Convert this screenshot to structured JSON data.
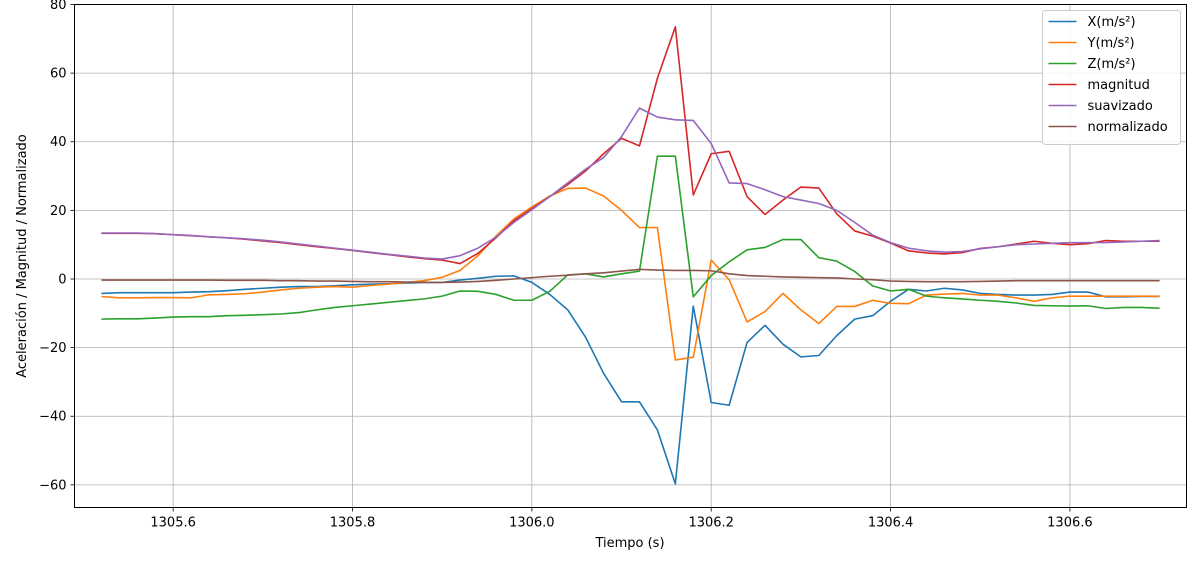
{
  "chart_data": {
    "type": "line",
    "xlabel": "Tiempo (s)",
    "ylabel": "Aceleración / Magnitud / Normalizado",
    "xlim": [
      1305.49,
      1306.73
    ],
    "ylim": [
      -66.6,
      80
    ],
    "xticks": [
      1305.6,
      1305.8,
      1306.0,
      1306.2,
      1306.4,
      1306.6
    ],
    "xtick_labels": [
      "1305.6",
      "1305.8",
      "1306.0",
      "1306.2",
      "1306.4",
      "1306.6"
    ],
    "yticks": [
      -60,
      -40,
      -20,
      0,
      20,
      40,
      60,
      80
    ],
    "ytick_labels": [
      "−60",
      "−40",
      "−20",
      "0",
      "20",
      "40",
      "60",
      "80"
    ],
    "grid": true,
    "legend_position": "top-right",
    "x": [
      1305.52,
      1305.54,
      1305.56,
      1305.58,
      1305.6,
      1305.62,
      1305.64,
      1305.66,
      1305.68,
      1305.7,
      1305.72,
      1305.74,
      1305.76,
      1305.78,
      1305.8,
      1305.82,
      1305.84,
      1305.86,
      1305.88,
      1305.9,
      1305.92,
      1305.94,
      1305.96,
      1305.98,
      1306.0,
      1306.02,
      1306.04,
      1306.06,
      1306.08,
      1306.1,
      1306.12,
      1306.14,
      1306.16,
      1306.18,
      1306.2,
      1306.22,
      1306.24,
      1306.26,
      1306.28,
      1306.3,
      1306.32,
      1306.34,
      1306.36,
      1306.38,
      1306.4,
      1306.42,
      1306.44,
      1306.46,
      1306.48,
      1306.5,
      1306.52,
      1306.54,
      1306.56,
      1306.58,
      1306.6,
      1306.62,
      1306.64,
      1306.66,
      1306.68,
      1306.7
    ],
    "series": [
      {
        "name": "X(m/s²)",
        "color": "#1f77b4",
        "values": [
          -4.2,
          -4.0,
          -4.0,
          -4.0,
          -4.0,
          -3.8,
          -3.7,
          -3.4,
          -3.0,
          -2.7,
          -2.4,
          -2.2,
          -2.2,
          -2.0,
          -1.7,
          -1.5,
          -1.4,
          -1.2,
          -1.0,
          -1.0,
          -0.3,
          0.2,
          0.8,
          0.9,
          -1.0,
          -4.5,
          -9.0,
          -17.0,
          -27.5,
          -35.8,
          -35.8,
          -44.0,
          -59.7,
          -7.9,
          -36.0,
          -36.8,
          -18.5,
          -13.5,
          -19.0,
          -22.7,
          -22.3,
          -16.5,
          -11.7,
          -10.7,
          -6.5,
          -3.0,
          -3.5,
          -2.7,
          -3.2,
          -4.2,
          -4.5,
          -4.7,
          -4.7,
          -4.5,
          -3.8,
          -3.8,
          -5.2,
          -5.2,
          -5.1,
          -5.1
        ]
      },
      {
        "name": "Y(m/s²)",
        "color": "#ff7f0e",
        "values": [
          -5.1,
          -5.5,
          -5.5,
          -5.4,
          -5.4,
          -5.5,
          -4.6,
          -4.5,
          -4.3,
          -3.8,
          -3.2,
          -2.7,
          -2.4,
          -2.2,
          -2.4,
          -1.9,
          -1.5,
          -1.0,
          -0.5,
          0.5,
          2.5,
          6.8,
          12.5,
          17.5,
          21.0,
          24.2,
          26.4,
          26.5,
          24.2,
          20.0,
          15.0,
          15.0,
          -23.6,
          -22.8,
          5.5,
          -0.2,
          -12.5,
          -9.5,
          -4.2,
          -9.0,
          -13.0,
          -8.0,
          -8.0,
          -6.2,
          -7.1,
          -7.2,
          -4.7,
          -4.4,
          -4.2,
          -4.7,
          -4.7,
          -5.5,
          -6.5,
          -5.5,
          -5.0,
          -5.0,
          -5.0,
          -5.0,
          -5.0,
          -5.0
        ]
      },
      {
        "name": "Z(m/s²)",
        "color": "#2ca02c",
        "values": [
          -11.7,
          -11.6,
          -11.6,
          -11.4,
          -11.1,
          -11.0,
          -11.0,
          -10.7,
          -10.6,
          -10.4,
          -10.2,
          -9.8,
          -9.0,
          -8.3,
          -7.8,
          -7.3,
          -6.8,
          -6.3,
          -5.8,
          -5.0,
          -3.5,
          -3.6,
          -4.5,
          -6.2,
          -6.2,
          -3.6,
          1.2,
          1.5,
          0.6,
          1.5,
          2.3,
          35.8,
          35.8,
          -5.2,
          1.0,
          5.0,
          8.5,
          9.2,
          11.5,
          11.5,
          6.2,
          5.2,
          2.2,
          -2.0,
          -3.5,
          -3.0,
          -5.0,
          -5.5,
          -5.8,
          -6.2,
          -6.5,
          -7.0,
          -7.7,
          -7.8,
          -7.9,
          -7.8,
          -8.6,
          -8.3,
          -8.3,
          -8.5
        ]
      },
      {
        "name": "magnitud",
        "color": "#d62728",
        "values": [
          13.3,
          13.3,
          13.3,
          13.2,
          12.9,
          12.6,
          12.3,
          12.0,
          11.6,
          11.1,
          10.6,
          10.0,
          9.4,
          8.9,
          8.3,
          7.7,
          7.1,
          6.5,
          5.9,
          5.5,
          4.5,
          7.5,
          12.0,
          17.0,
          20.5,
          24.0,
          27.5,
          31.5,
          36.5,
          41.0,
          38.8,
          58.5,
          73.5,
          24.5,
          36.5,
          37.2,
          24.0,
          18.8,
          23.0,
          26.8,
          26.5,
          19.0,
          14.0,
          12.5,
          10.5,
          8.2,
          7.6,
          7.3,
          7.7,
          8.9,
          9.4,
          10.2,
          11.0,
          10.4,
          10.0,
          10.3,
          11.2,
          11.0,
          11.0,
          11.0
        ]
      },
      {
        "name": "suavizado",
        "color": "#9467bd",
        "values": [
          13.4,
          13.4,
          13.4,
          13.2,
          12.9,
          12.7,
          12.3,
          12.0,
          11.7,
          11.3,
          10.8,
          10.2,
          9.6,
          9.0,
          8.4,
          7.8,
          7.2,
          6.7,
          6.1,
          5.8,
          6.8,
          9.0,
          12.2,
          16.5,
          20.2,
          24.0,
          28.0,
          32.0,
          35.4,
          41.5,
          49.8,
          47.2,
          46.4,
          46.2,
          39.5,
          28.0,
          27.8,
          26.0,
          24.0,
          23.0,
          22.0,
          20.0,
          16.5,
          12.8,
          10.6,
          9.0,
          8.2,
          7.8,
          8.0,
          8.8,
          9.4,
          10.0,
          10.2,
          10.4,
          10.6,
          10.6,
          10.6,
          10.8,
          11.0,
          11.2
        ]
      },
      {
        "name": "normalizado",
        "color": "#8c564b",
        "values": [
          -0.3,
          -0.3,
          -0.3,
          -0.3,
          -0.3,
          -0.3,
          -0.3,
          -0.4,
          -0.4,
          -0.4,
          -0.5,
          -0.5,
          -0.6,
          -0.6,
          -0.7,
          -0.8,
          -0.8,
          -0.9,
          -1.0,
          -1.0,
          -0.9,
          -0.7,
          -0.4,
          0.0,
          0.4,
          0.8,
          1.1,
          1.5,
          1.8,
          2.3,
          2.8,
          2.6,
          2.5,
          2.5,
          2.4,
          1.5,
          1.0,
          0.8,
          0.6,
          0.5,
          0.4,
          0.3,
          0.0,
          -0.2,
          -0.6,
          -0.7,
          -0.8,
          -0.8,
          -0.8,
          -0.7,
          -0.6,
          -0.5,
          -0.5,
          -0.5,
          -0.5,
          -0.5,
          -0.5,
          -0.5,
          -0.5,
          -0.5
        ]
      }
    ]
  }
}
